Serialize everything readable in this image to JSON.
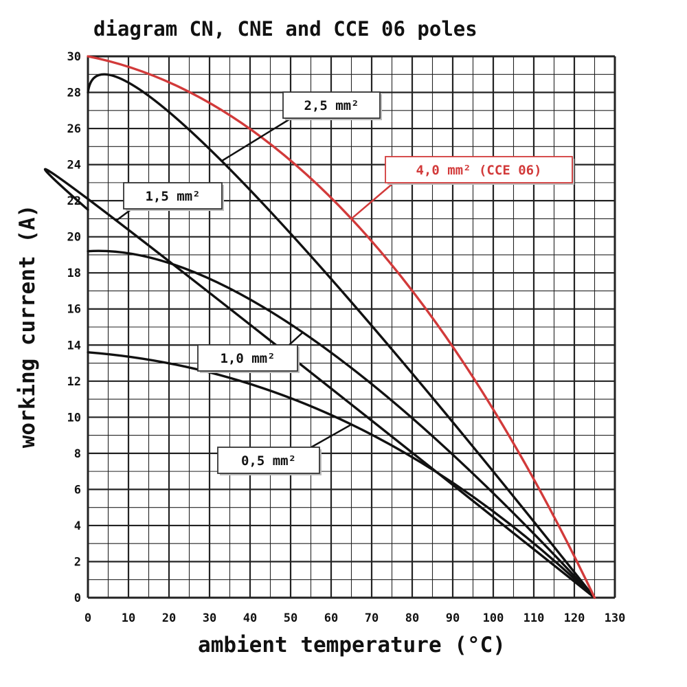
{
  "chart_data": {
    "type": "line",
    "title": "diagram CN, CNE and CCE 06 poles",
    "xlabel": "ambient temperature (°C)",
    "ylabel": "working current (A)",
    "xlim": [
      0,
      130
    ],
    "ylim": [
      0,
      30
    ],
    "x_ticks": [
      "0",
      "10",
      "20",
      "30",
      "40",
      "50",
      "60",
      "70",
      "80",
      "90",
      "100",
      "110",
      "120",
      "130"
    ],
    "y_ticks": [
      "0",
      "2",
      "4",
      "6",
      "8",
      "10",
      "12",
      "14",
      "16",
      "18",
      "20",
      "22",
      "24",
      "26",
      "28",
      "30"
    ],
    "grid": true,
    "series": [
      {
        "name": "4,0 mm² (CCE 06)",
        "label": "4,0 mm² (CCE 06)",
        "color": "#d23a3a",
        "x": [
          0,
          65,
          125
        ],
        "y": [
          30,
          21,
          0
        ]
      },
      {
        "name": "2,5 mm²",
        "label": "2,5 mm²",
        "color": "#111111",
        "x": [
          0,
          33,
          125
        ],
        "y": [
          28,
          24.2,
          0
        ]
      },
      {
        "name": "1,5 mm²",
        "label": "1,5 mm²",
        "color": "#111111",
        "x": [
          0,
          7,
          125
        ],
        "y": [
          21.5,
          20.9,
          0
        ]
      },
      {
        "name": "1,0 mm²",
        "label": "1,0 mm²",
        "color": "#111111",
        "x": [
          0,
          53,
          125
        ],
        "y": [
          19.2,
          14.7,
          0
        ]
      },
      {
        "name": "0,5 mm²",
        "label": "0,5 mm²",
        "color": "#111111",
        "x": [
          0,
          65,
          125
        ],
        "y": [
          13.6,
          9.6,
          0
        ]
      }
    ]
  }
}
